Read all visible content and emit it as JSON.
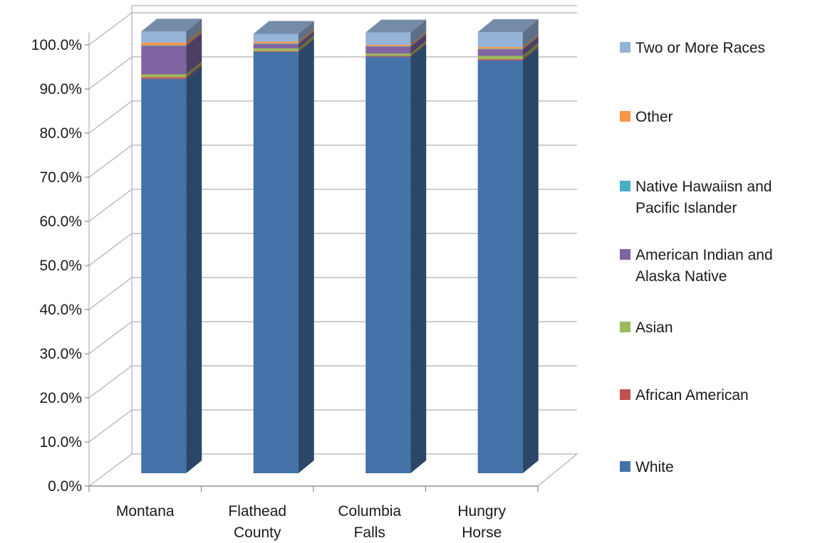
{
  "chart_data": {
    "type": "bar",
    "stacked": true,
    "three_d": true,
    "categories": [
      [
        "Montana"
      ],
      [
        "Flathead",
        "County"
      ],
      [
        "Columbia",
        "Falls"
      ],
      [
        "Hungry",
        "Horse"
      ]
    ],
    "series": [
      {
        "name": "White",
        "color": "#4472A8",
        "values": [
          89.4,
          95.5,
          94.4,
          93.6
        ]
      },
      {
        "name": "African American",
        "color": "#C0504D",
        "values": [
          0.4,
          0.2,
          0.2,
          0.3
        ]
      },
      {
        "name": "Asian",
        "color": "#9BBB59",
        "values": [
          0.6,
          0.6,
          0.5,
          0.7
        ]
      },
      {
        "name": "American Indian and Alaska Native",
        "color": "#8064A2",
        "values": [
          6.5,
          1.0,
          1.6,
          1.5
        ]
      },
      {
        "name": "Native Hawaiisn and Pacific Islander",
        "color": "#4BACC6",
        "values": [
          0.1,
          0.1,
          0.1,
          0.1
        ]
      },
      {
        "name": "Other",
        "color": "#F79646",
        "values": [
          0.6,
          0.4,
          0.3,
          0.4
        ]
      },
      {
        "name": "Two or More Races",
        "color": "#95B3D7",
        "values": [
          2.5,
          1.8,
          2.8,
          3.4
        ]
      }
    ],
    "y_ticks": [
      "0.0%",
      "10.0%",
      "20.0%",
      "30.0%",
      "40.0%",
      "50.0%",
      "60.0%",
      "70.0%",
      "80.0%",
      "90.0%",
      "100.0%"
    ],
    "ylim": [
      0,
      100
    ],
    "grid": true,
    "legend_position": "right",
    "title": "",
    "xlabel": "",
    "ylabel": ""
  }
}
